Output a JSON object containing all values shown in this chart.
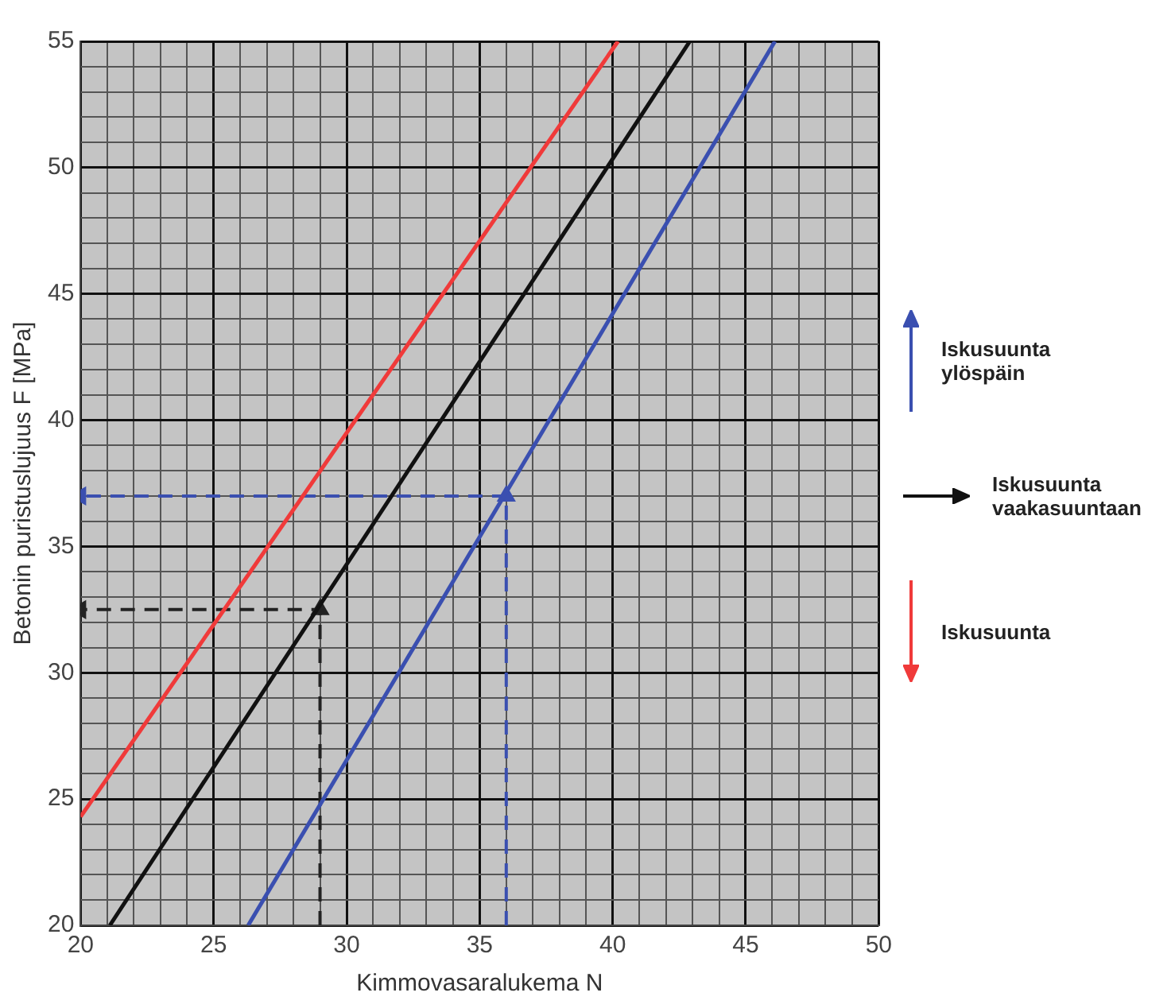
{
  "chart_data": {
    "type": "line",
    "xlabel": "Kimmovasaralukema N",
    "ylabel": "Betonin puristuslujuus F [MPa]",
    "xlim": [
      20,
      50
    ],
    "ylim": [
      20,
      55
    ],
    "xticks": [
      20,
      {
        "value": 21,
        "label": null
      },
      {
        "value": 22,
        "label": null
      },
      {
        "value": 23,
        "label": null
      },
      {
        "value": 24,
        "label": null
      },
      25,
      {
        "value": 26,
        "label": null
      },
      {
        "value": 27,
        "label": null
      },
      {
        "value": 28,
        "label": null
      },
      {
        "value": 29,
        "label": null
      },
      30,
      {
        "value": 31,
        "label": null
      },
      {
        "value": 32,
        "label": null
      },
      {
        "value": 33,
        "label": null
      },
      {
        "value": 34,
        "label": null
      },
      35,
      {
        "value": 36,
        "label": null
      },
      {
        "value": 37,
        "label": null
      },
      {
        "value": 38,
        "label": null
      },
      {
        "value": 39,
        "label": null
      },
      40,
      {
        "value": 41,
        "label": null
      },
      {
        "value": 42,
        "label": null
      },
      {
        "value": 43,
        "label": null
      },
      {
        "value": 44,
        "label": null
      },
      45,
      {
        "value": 46,
        "label": null
      },
      {
        "value": 47,
        "label": null
      },
      {
        "value": 48,
        "label": null
      },
      {
        "value": 49,
        "label": null
      },
      50
    ],
    "yticks": [
      20,
      {
        "value": 21,
        "label": null
      },
      {
        "value": 22,
        "label": null
      },
      {
        "value": 23,
        "label": null
      },
      {
        "value": 24,
        "label": null
      },
      25,
      {
        "value": 26,
        "label": null
      },
      {
        "value": 27,
        "label": null
      },
      {
        "value": 28,
        "label": null
      },
      {
        "value": 29,
        "label": null
      },
      30,
      {
        "value": 31,
        "label": null
      },
      {
        "value": 32,
        "label": null
      },
      {
        "value": 33,
        "label": null
      },
      {
        "value": 34,
        "label": null
      },
      35,
      {
        "value": 36,
        "label": null
      },
      {
        "value": 37,
        "label": null
      },
      {
        "value": 38,
        "label": null
      },
      {
        "value": 39,
        "label": null
      },
      40,
      {
        "value": 41,
        "label": null
      },
      {
        "value": 42,
        "label": null
      },
      {
        "value": 43,
        "label": null
      },
      {
        "value": 44,
        "label": null
      },
      45,
      {
        "value": 46,
        "label": null
      },
      {
        "value": 47,
        "label": null
      },
      {
        "value": 48,
        "label": null
      },
      {
        "value": 49,
        "label": null
      },
      50,
      {
        "value": 51,
        "label": null
      },
      {
        "value": 52,
        "label": null
      },
      {
        "value": 53,
        "label": null
      },
      {
        "value": 54,
        "label": null
      },
      55
    ],
    "grid": true,
    "legend": "right",
    "marker": "none",
    "series": [
      {
        "name": "Iskusuunta ylöspäin",
        "color": "#3a4fb0",
        "x": [
          26.3,
          46.1
        ],
        "values": [
          20,
          55
        ]
      },
      {
        "name": "Iskusuunta vaakasuuntaan",
        "color": "#111111",
        "x": [
          21.1,
          42.9
        ],
        "values": [
          20,
          55
        ]
      },
      {
        "name": "Iskusuunta",
        "color": "#f03a3a",
        "x": [
          20,
          40.2
        ],
        "values": [
          24.3,
          55
        ]
      },
      {
        "color": "#3a4fb0",
        "line_style": "dashed",
        "marker": "triangle",
        "x": [
          36,
          36,
          20
        ],
        "values": [
          20,
          37,
          37
        ]
      },
      {
        "color": "#222222",
        "line_style": "dashed",
        "marker": "triangle",
        "x": [
          29,
          29,
          20
        ],
        "values": [
          20,
          32.5,
          32.5
        ]
      }
    ]
  }
}
